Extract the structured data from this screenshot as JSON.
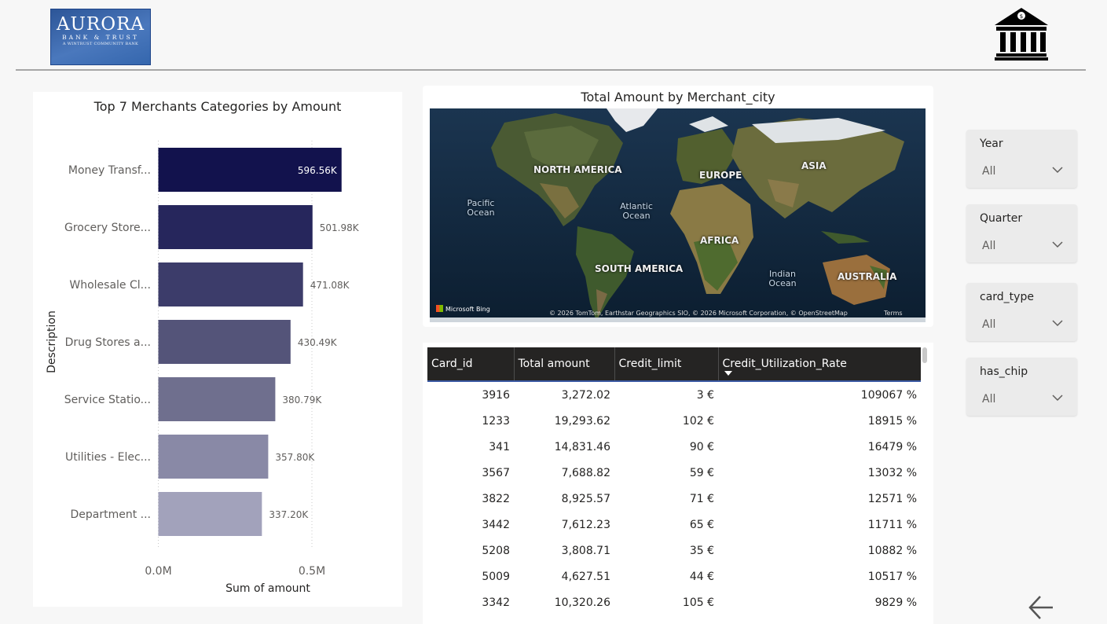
{
  "logo": {
    "line1": "AURORA",
    "line2": "BANK & TRUST",
    "line3": "A WINTRUST COMMUNITY BANK"
  },
  "header_icon": "bank-building-icon",
  "bar_chart_card": {
    "chart_data": {
      "type": "bar",
      "orientation": "horizontal",
      "title": "Top 7 Merchants Categories by Amount",
      "xlabel": "Sum of amount",
      "ylabel": "Description",
      "categories": [
        "Money Transf...",
        "Grocery Store...",
        "Wholesale Cl...",
        "Drug Stores a...",
        "Service Statio...",
        "Utilities - Elec...",
        "Department ..."
      ],
      "values": [
        596560,
        501980,
        471080,
        430490,
        380790,
        357800,
        337200
      ],
      "data_labels": [
        "596.56K",
        "501.98K",
        "471.08K",
        "430.49K",
        "380.79K",
        "357.80K",
        "337.20K"
      ],
      "x_ticks": [
        "0.0M",
        "0.5M"
      ],
      "x_tick_values": [
        0,
        500000
      ],
      "xlim": [
        0,
        600000
      ],
      "bar_colors": [
        "#12124d",
        "#26265c",
        "#3c3c6a",
        "#545479",
        "#6f6f8e",
        "#8989a6",
        "#a2a2bb"
      ],
      "grid": "vertical dotted"
    }
  },
  "map_card": {
    "title": "Total Amount by Merchant_city",
    "continents": [
      "NORTH AMERICA",
      "EUROPE",
      "ASIA",
      "AFRICA",
      "SOUTH AMERICA",
      "AUSTRALIA"
    ],
    "oceans": [
      "Pacific Ocean",
      "Atlantic Ocean",
      "Indian Ocean"
    ],
    "brand": "Microsoft Bing",
    "attribution": "© 2026 TomTom, Earthstar Geographics SIO, © 2026 Microsoft Corporation, © OpenStreetMap",
    "terms": "Terms"
  },
  "table": {
    "columns": [
      "Card_id",
      "Total amount",
      "Credit_limit",
      "Credit_Utilization_Rate"
    ],
    "rows": [
      [
        "3916",
        "3,272.02",
        "3 €",
        "109067 %"
      ],
      [
        "1233",
        "19,293.62",
        "102 €",
        "18915 %"
      ],
      [
        "341",
        "14,831.46",
        "90 €",
        "16479 %"
      ],
      [
        "3567",
        "7,688.82",
        "59 €",
        "13032 %"
      ],
      [
        "3822",
        "8,925.57",
        "71 €",
        "12571 %"
      ],
      [
        "3442",
        "7,612.23",
        "65 €",
        "11711 %"
      ],
      [
        "5208",
        "3,808.71",
        "35 €",
        "10882 %"
      ],
      [
        "5009",
        "4,627.51",
        "44 €",
        "10517 %"
      ],
      [
        "3342",
        "10,320.26",
        "105 €",
        "9829 %"
      ]
    ]
  },
  "slicers": [
    {
      "title": "Year",
      "value": "All"
    },
    {
      "title": "Quarter",
      "value": "All"
    },
    {
      "title": "card_type",
      "value": "All"
    },
    {
      "title": "has_chip",
      "value": "All"
    }
  ],
  "nav": {
    "back_icon": "back-arrow-icon"
  }
}
